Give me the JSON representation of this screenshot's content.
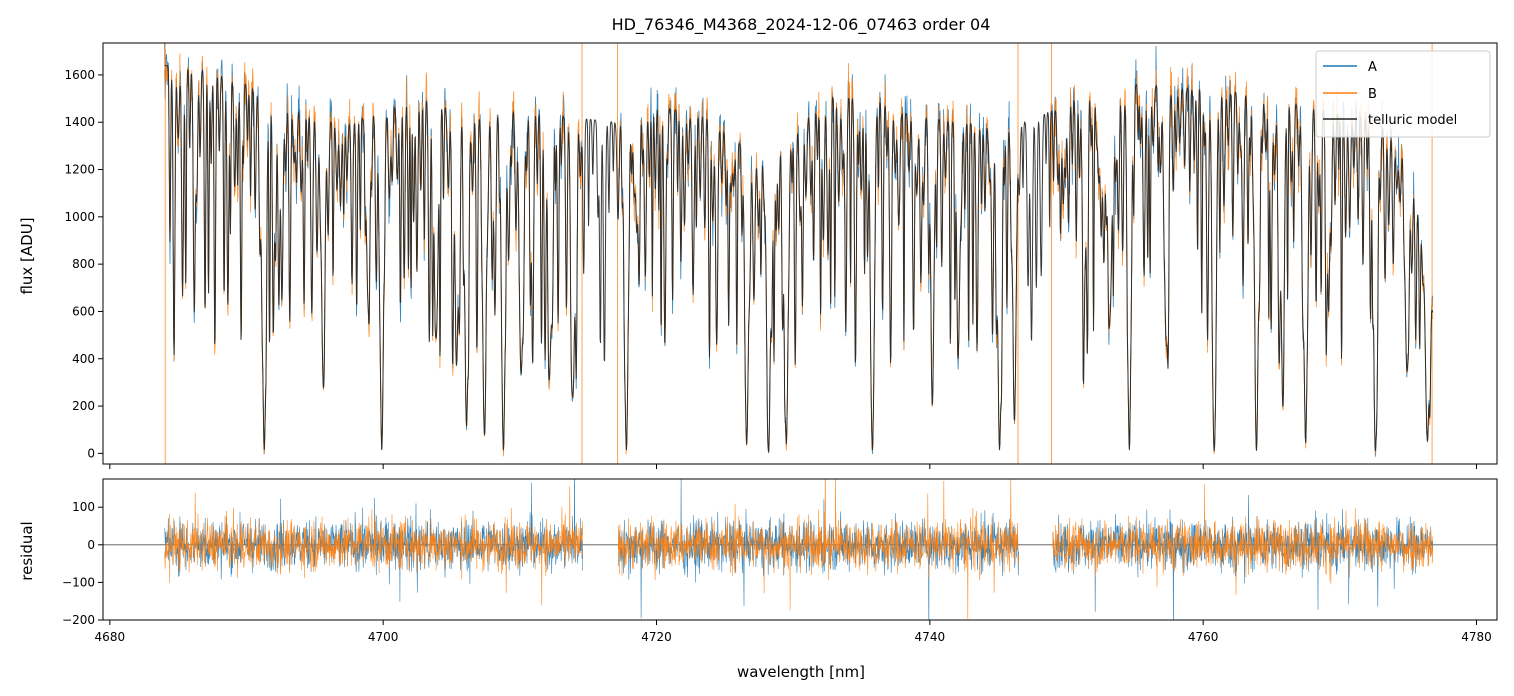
{
  "chart_data": [
    {
      "type": "line",
      "title": "HD_76346_M4368_2024-12-06_07463  order 04",
      "xlabel": "",
      "ylabel": "flux [ADU]",
      "xlim": [
        4679.5,
        4781.5
      ],
      "ylim": [
        -45,
        1735
      ],
      "x_ticks": [
        4680,
        4700,
        4720,
        4740,
        4760,
        4780
      ],
      "y_ticks": [
        0,
        200,
        400,
        600,
        800,
        1000,
        1200,
        1400,
        1600
      ],
      "y_tick_labels": [
        "0",
        "200",
        "400",
        "600",
        "800",
        "1000",
        "1200",
        "1400",
        "1600"
      ],
      "legend": {
        "position": "top-right",
        "entries": [
          "A",
          "B",
          "telluric model"
        ]
      },
      "series": [
        {
          "name": "A",
          "color": "#1f77b4",
          "x_range": [
            4684.0,
            4776.8
          ],
          "segments": [
            [
              4684.0,
              4714.6
            ],
            [
              4717.2,
              4746.5
            ],
            [
              4748.8,
              4776.8
            ]
          ]
        },
        {
          "name": "B",
          "color": "#ff7f0e",
          "x_range": [
            4684.0,
            4776.8
          ],
          "segments": [
            [
              4684.0,
              4714.6
            ],
            [
              4717.2,
              4746.5
            ],
            [
              4748.8,
              4776.8
            ]
          ]
        },
        {
          "name": "telluric model",
          "color": "#222222",
          "x_range": [
            4684.0,
            4776.8
          ]
        }
      ],
      "continuum": [
        [
          4684,
          1640
        ],
        [
          4687,
          1620
        ],
        [
          4690,
          1560
        ],
        [
          4692,
          1490
        ],
        [
          4695,
          1440
        ],
        [
          4697,
          1380
        ],
        [
          4700,
          1460
        ],
        [
          4703,
          1500
        ],
        [
          4706,
          1440
        ],
        [
          4710,
          1450
        ],
        [
          4714,
          1420
        ],
        [
          4717,
          1400
        ],
        [
          4720,
          1470
        ],
        [
          4724,
          1420
        ],
        [
          4727,
          1260
        ],
        [
          4729,
          1300
        ],
        [
          4731,
          1430
        ],
        [
          4733,
          1510
        ],
        [
          4736,
          1500
        ],
        [
          4738,
          1440
        ],
        [
          4742,
          1400
        ],
        [
          4746,
          1380
        ],
        [
          4749,
          1450
        ],
        [
          4752,
          1560
        ],
        [
          4756,
          1560
        ],
        [
          4760,
          1540
        ],
        [
          4764,
          1520
        ],
        [
          4768,
          1460
        ],
        [
          4772,
          1420
        ],
        [
          4775,
          1300
        ],
        [
          4776.8,
          600
        ]
      ],
      "absorption_lines": [
        {
          "x": 4691.3,
          "depth": 0.99
        },
        {
          "x": 4695.6,
          "depth": 0.7
        },
        {
          "x": 4698.9,
          "depth": 0.55
        },
        {
          "x": 4699.9,
          "depth": 0.99
        },
        {
          "x": 4703.9,
          "depth": 0.65
        },
        {
          "x": 4705.4,
          "depth": 0.55
        },
        {
          "x": 4706.1,
          "depth": 0.92
        },
        {
          "x": 4707.4,
          "depth": 0.85
        },
        {
          "x": 4708.8,
          "depth": 0.99
        },
        {
          "x": 4710.1,
          "depth": 0.75
        },
        {
          "x": 4712.2,
          "depth": 0.7
        },
        {
          "x": 4713.9,
          "depth": 0.8
        },
        {
          "x": 4717.8,
          "depth": 0.99
        },
        {
          "x": 4726.6,
          "depth": 0.97
        },
        {
          "x": 4728.2,
          "depth": 0.99
        },
        {
          "x": 4729.5,
          "depth": 0.97
        },
        {
          "x": 4735.8,
          "depth": 0.99
        },
        {
          "x": 4740.2,
          "depth": 0.6
        },
        {
          "x": 4742.1,
          "depth": 0.55
        },
        {
          "x": 4745.1,
          "depth": 0.99
        },
        {
          "x": 4746.2,
          "depth": 0.8
        },
        {
          "x": 4751.3,
          "depth": 0.55
        },
        {
          "x": 4753.2,
          "depth": 0.6
        },
        {
          "x": 4754.6,
          "depth": 0.99
        },
        {
          "x": 4757.3,
          "depth": 0.7
        },
        {
          "x": 4760.8,
          "depth": 0.99
        },
        {
          "x": 4763.9,
          "depth": 0.99
        },
        {
          "x": 4765.8,
          "depth": 0.65
        },
        {
          "x": 4767.5,
          "depth": 0.97
        },
        {
          "x": 4772.6,
          "depth": 0.99
        },
        {
          "x": 4774.9,
          "depth": 0.72
        },
        {
          "x": 4776.4,
          "depth": 0.9
        }
      ]
    },
    {
      "type": "line",
      "title": "",
      "xlabel": "wavelength [nm]",
      "ylabel": "residual",
      "xlim": [
        4679.5,
        4781.5
      ],
      "ylim": [
        -200,
        175
      ],
      "x_ticks": [
        4680,
        4700,
        4720,
        4740,
        4760,
        4780
      ],
      "x_tick_labels": [
        "4680",
        "4700",
        "4720",
        "4740",
        "4760",
        "4780"
      ],
      "y_ticks": [
        -200,
        -100,
        0,
        100
      ],
      "y_tick_labels": [
        "−200",
        "−100",
        "0",
        "100"
      ],
      "zero_line": 0,
      "series": [
        {
          "name": "A",
          "color": "#1f77b4",
          "rms": 45,
          "segments": [
            [
              4684.0,
              4714.6
            ],
            [
              4717.2,
              4746.5
            ],
            [
              4749.0,
              4776.8
            ]
          ]
        },
        {
          "name": "B",
          "color": "#ff7f0e",
          "rms": 45,
          "segments": [
            [
              4684.0,
              4714.6
            ],
            [
              4717.2,
              4746.5
            ],
            [
              4749.0,
              4776.8
            ]
          ]
        }
      ]
    }
  ]
}
